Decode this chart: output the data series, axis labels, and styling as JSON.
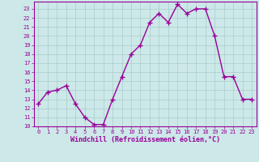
{
  "x": [
    0,
    1,
    2,
    3,
    4,
    5,
    6,
    7,
    8,
    9,
    10,
    11,
    12,
    13,
    14,
    15,
    16,
    17,
    18,
    19,
    20,
    21,
    22,
    23
  ],
  "y": [
    12.5,
    13.8,
    14.0,
    14.5,
    12.5,
    11.0,
    10.2,
    10.2,
    13.0,
    15.5,
    18.0,
    19.0,
    21.5,
    22.5,
    21.5,
    23.5,
    22.5,
    23.0,
    23.0,
    20.0,
    15.5,
    15.5,
    13.0,
    13.0
  ],
  "line_color": "#990099",
  "marker": "+",
  "markersize": 4,
  "markeredgewidth": 1.0,
  "linewidth": 1.0,
  "bg_color": "#cce8e8",
  "grid_color": "#aacccc",
  "xlabel": "Windchill (Refroidissement éolien,°C)",
  "ylim": [
    10,
    23.8
  ],
  "xlim": [
    -0.5,
    23.5
  ],
  "yticks": [
    10,
    11,
    12,
    13,
    14,
    15,
    16,
    17,
    18,
    19,
    20,
    21,
    22,
    23
  ],
  "xticks": [
    0,
    1,
    2,
    3,
    4,
    5,
    6,
    7,
    8,
    9,
    10,
    11,
    12,
    13,
    14,
    15,
    16,
    17,
    18,
    19,
    20,
    21,
    22,
    23
  ],
  "tick_color": "#990099",
  "tick_fontsize": 5.0,
  "xlabel_fontsize": 6.0,
  "xlabel_fontweight": "bold",
  "spine_color": "#990099"
}
